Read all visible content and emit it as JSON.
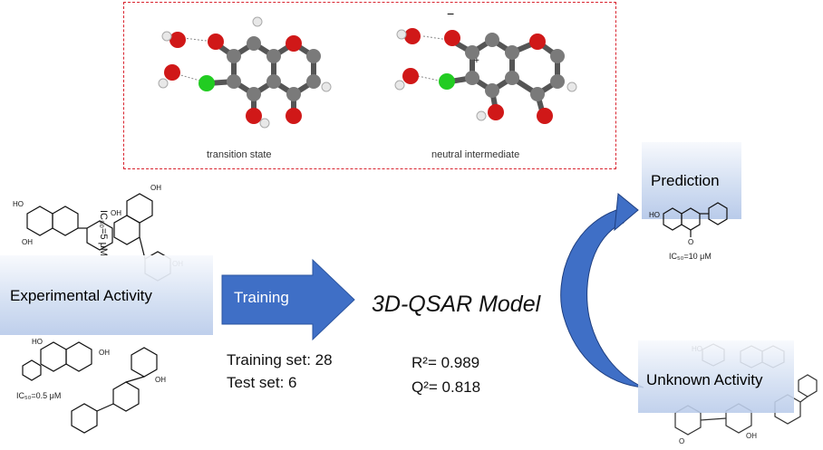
{
  "top_panel": {
    "caption_left": "transition state",
    "caption_right": "neutral intermediate"
  },
  "experimental": {
    "label": "Experimental Activity",
    "ic50_bottom": "IC₅₀=0.5 μM",
    "ic50_rotated": "IC₅₀=5 μM"
  },
  "training": {
    "arrow_label": "Training",
    "training_set": "Training set: 28",
    "test_set": "Test set: 6"
  },
  "model": {
    "title": "3D-QSAR Model",
    "r2": "R²= 0.989",
    "q2": "Q²= 0.818"
  },
  "prediction": {
    "label": "Prediction",
    "ic50": "IC₅₀=10 μM"
  },
  "unknown": {
    "label": "Unknown Activity"
  },
  "colors": {
    "oxygen": "#d01818",
    "carbon": "#7a7a7a",
    "hydrogen": "#e8e8e8",
    "chlorine": "#22cc22",
    "arrow_blue": "#3f6fc6",
    "dashed_border": "#d9232e"
  }
}
